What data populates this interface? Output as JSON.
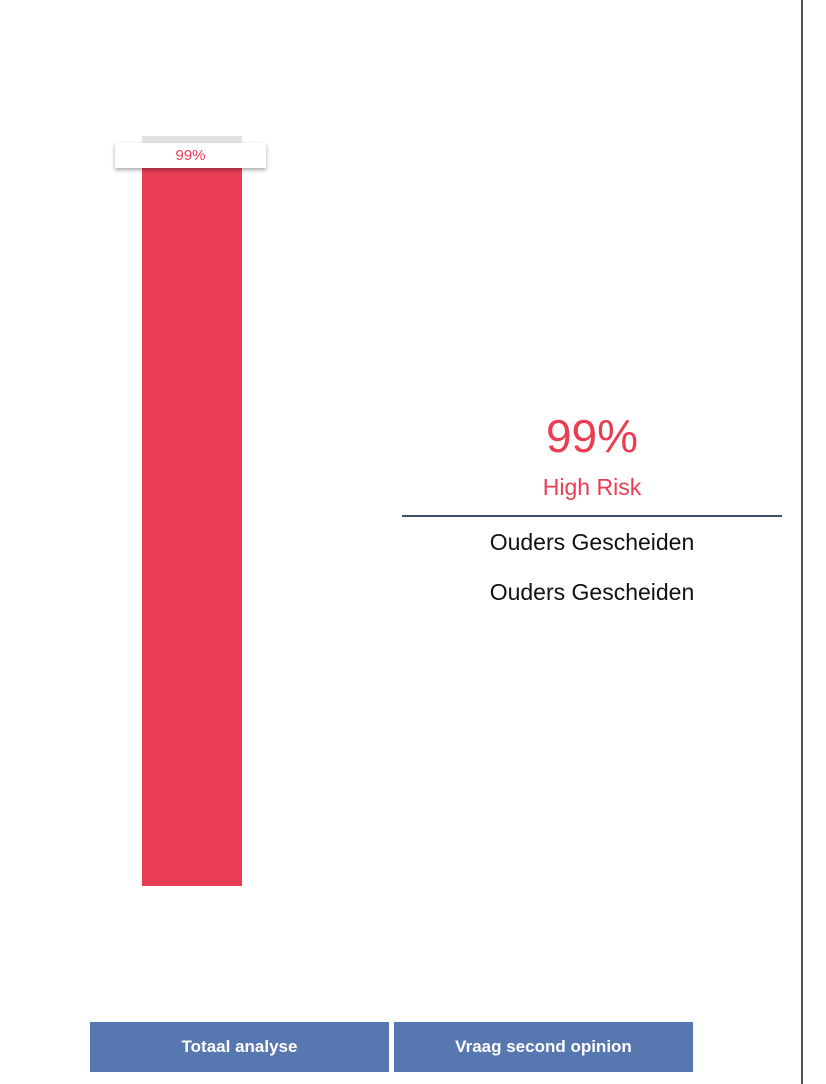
{
  "risk": {
    "percent_value": 99,
    "percent_label": "99%",
    "level_label": "High Risk",
    "bar_color": "#e93d54"
  },
  "factors": [
    {
      "label": "Ouders Gescheiden"
    },
    {
      "label": "Ouders Gescheiden"
    }
  ],
  "actions": {
    "total_analysis_label": "Totaal analyse",
    "second_opinion_label": "Vraag second opinion",
    "button_color": "#5677b0"
  }
}
